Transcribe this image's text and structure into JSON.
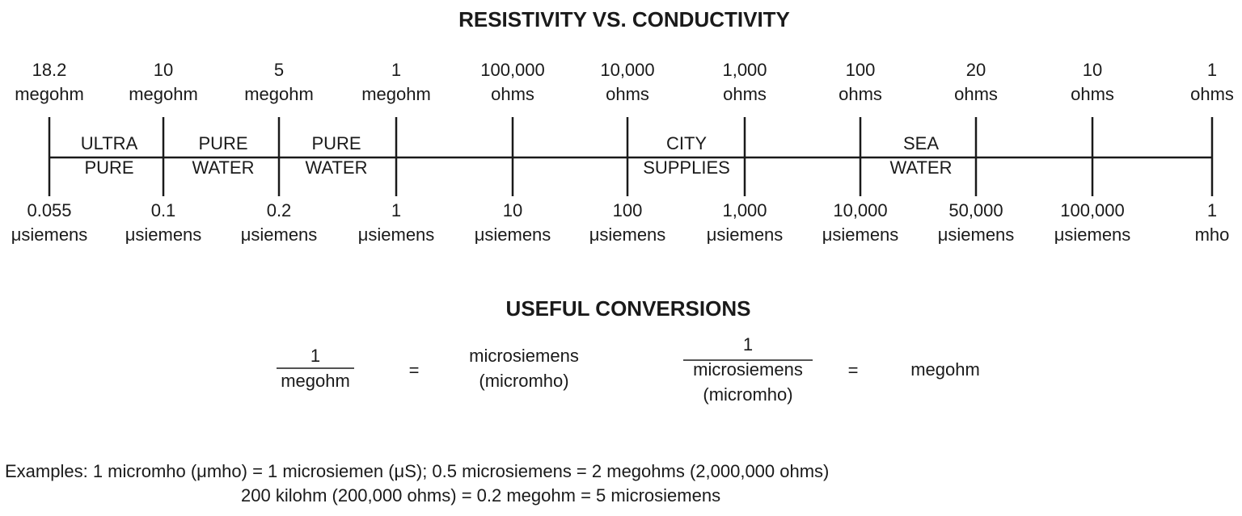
{
  "title": "RESISTIVITY VS. CONDUCTIVITY",
  "scale": {
    "ticks": [
      {
        "resistance": [
          "18.2",
          "megohm"
        ],
        "conductance": [
          "0.055",
          "μsiemens"
        ]
      },
      {
        "resistance": [
          "10",
          "megohm"
        ],
        "conductance": [
          "0.1",
          "μsiemens"
        ]
      },
      {
        "resistance": [
          "5",
          "megohm"
        ],
        "conductance": [
          "0.2",
          "μsiemens"
        ]
      },
      {
        "resistance": [
          "1",
          "megohm"
        ],
        "conductance": [
          "1",
          "μsiemens"
        ]
      },
      {
        "resistance": [
          "100,000",
          "ohms"
        ],
        "conductance": [
          "10",
          "μsiemens"
        ]
      },
      {
        "resistance": [
          "10,000",
          "ohms"
        ],
        "conductance": [
          "100",
          "μsiemens"
        ]
      },
      {
        "resistance": [
          "1,000",
          "ohms"
        ],
        "conductance": [
          "1,000",
          "μsiemens"
        ]
      },
      {
        "resistance": [
          "100",
          "ohms"
        ],
        "conductance": [
          "10,000",
          "μsiemens"
        ]
      },
      {
        "resistance": [
          "20",
          "ohms"
        ],
        "conductance": [
          "50,000",
          "μsiemens"
        ]
      },
      {
        "resistance": [
          "10",
          "ohms"
        ],
        "conductance": [
          "100,000",
          "μsiemens"
        ]
      },
      {
        "resistance": [
          "1",
          "ohms"
        ],
        "conductance": [
          "1",
          "mho"
        ]
      }
    ],
    "regions": [
      [
        "ULTRA",
        "PURE"
      ],
      [
        "PURE",
        "WATER"
      ],
      [
        "PURE",
        "WATER"
      ],
      [
        "CITY",
        "SUPPLIES"
      ],
      [
        "SEA",
        "WATER"
      ]
    ]
  },
  "conversions": {
    "title": "USEFUL CONVERSIONS",
    "formula1": {
      "numerator": "1",
      "denominator": "megohm",
      "equals": "=",
      "result": [
        "microsiemens",
        "(micromho)"
      ]
    },
    "formula2": {
      "numerator": "1",
      "denominator": [
        "microsiemens",
        "(micromho)"
      ],
      "equals": "=",
      "result": "megohm"
    }
  },
  "examples": [
    "Examples: 1 micromho (μmho) = 1 microsiemen (μS); 0.5 microsiemens = 2 megohms (2,000,000 ohms)",
    "200 kilohm (200,000 ohms) = 0.2 megohm = 5 microsiemens"
  ]
}
